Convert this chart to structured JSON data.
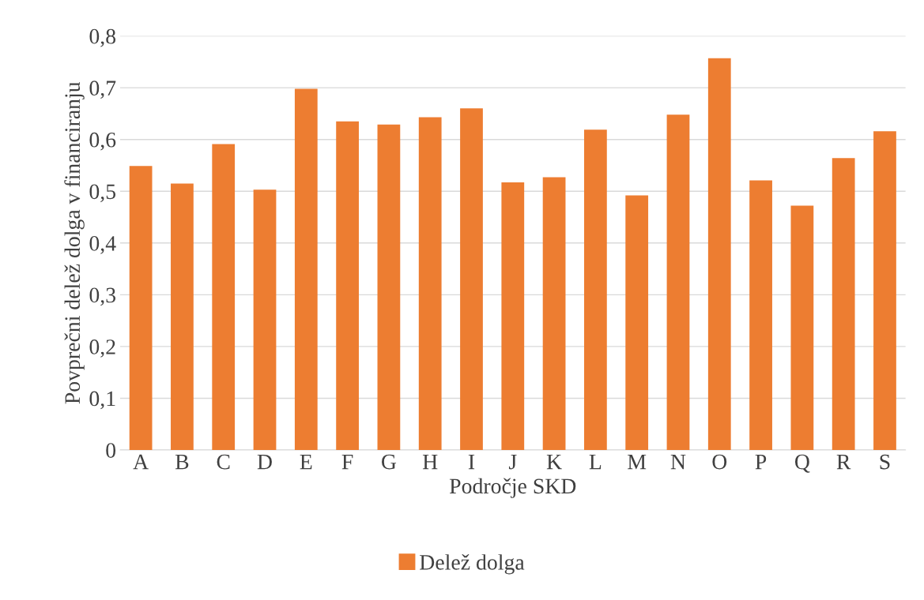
{
  "chart_data": {
    "type": "bar",
    "xlabel": "Področje SKD",
    "ylabel": "Povprečni delež dolga v financiranju",
    "categories": [
      "A",
      "B",
      "C",
      "D",
      "E",
      "F",
      "G",
      "H",
      "I",
      "J",
      "K",
      "L",
      "M",
      "N",
      "O",
      "P",
      "Q",
      "R",
      "S"
    ],
    "series": [
      {
        "name": "Delež dolga",
        "color": "#ed7d31",
        "values": [
          0.549,
          0.515,
          0.591,
          0.503,
          0.698,
          0.635,
          0.629,
          0.643,
          0.66,
          0.517,
          0.527,
          0.619,
          0.492,
          0.648,
          0.757,
          0.521,
          0.472,
          0.564,
          0.616
        ]
      }
    ],
    "ylim": [
      0,
      0.8
    ],
    "yticks": [
      {
        "value": 0,
        "label": "0"
      },
      {
        "value": 0.1,
        "label": "0,1"
      },
      {
        "value": 0.2,
        "label": "0,2"
      },
      {
        "value": 0.3,
        "label": "0,3"
      },
      {
        "value": 0.4,
        "label": "0,4"
      },
      {
        "value": 0.5,
        "label": "0,5"
      },
      {
        "value": 0.6,
        "label": "0,6"
      },
      {
        "value": 0.7,
        "label": "0,7"
      },
      {
        "value": 0.8,
        "label": "0,8"
      }
    ],
    "grid": "y",
    "legend": "bottom"
  }
}
